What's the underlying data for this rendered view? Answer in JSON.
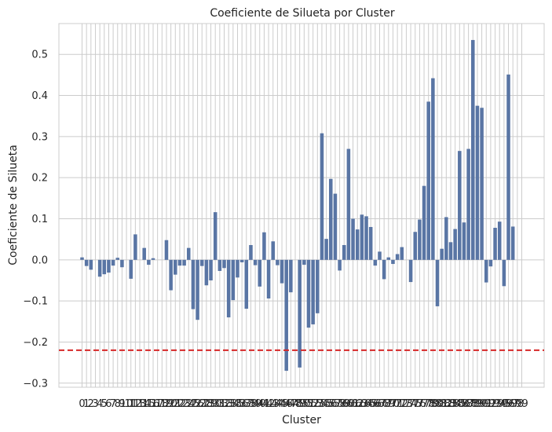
{
  "chart_data": {
    "type": "bar",
    "title": "Coeficiente de Silueta por Cluster",
    "xlabel": "Cluster",
    "ylabel": "Coeficiente de Silueta",
    "ylim": [
      -0.31,
      0.575
    ],
    "yticks": [
      "−0.3",
      "−0.2",
      "−0.1",
      "0.0",
      "0.1",
      "0.2",
      "0.3",
      "0.4",
      "0.5"
    ],
    "ytick_values": [
      -0.3,
      -0.2,
      -0.1,
      0.0,
      0.1,
      0.2,
      0.3,
      0.4,
      0.5
    ],
    "grid": true,
    "bar_color": "#5975a4",
    "reference_line": {
      "value": -0.22,
      "color": "#d62728",
      "style": "dashed"
    },
    "categories": [
      "0",
      "1",
      "2",
      "3",
      "4",
      "5",
      "6",
      "7",
      "8",
      "9",
      "10",
      "11",
      "12",
      "13",
      "14",
      "15",
      "16",
      "17",
      "18",
      "19",
      "20",
      "21",
      "22",
      "23",
      "24",
      "25",
      "26",
      "27",
      "28",
      "29",
      "30",
      "31",
      "32",
      "33",
      "34",
      "35",
      "36",
      "37",
      "38",
      "39",
      "40",
      "41",
      "42",
      "43",
      "44",
      "45",
      "46",
      "47",
      "48",
      "49",
      "50",
      "51",
      "52",
      "53",
      "54",
      "55",
      "56",
      "57",
      "58",
      "59",
      "60",
      "61",
      "62",
      "63",
      "64",
      "65",
      "66",
      "67",
      "68",
      "69",
      "70",
      "71",
      "72",
      "73",
      "74",
      "75",
      "76",
      "77",
      "78",
      "79",
      "80",
      "81",
      "82",
      "83",
      "84",
      "85",
      "86",
      "87",
      "88",
      "89",
      "90",
      "91",
      "92",
      "93",
      "94",
      "95",
      "96",
      "97",
      "98",
      "99"
    ],
    "values": [
      0.006,
      -0.015,
      -0.024,
      0.0,
      -0.041,
      -0.035,
      -0.031,
      -0.014,
      0.005,
      -0.018,
      0.0,
      -0.046,
      0.062,
      0.0,
      0.029,
      -0.012,
      0.004,
      0.0,
      0.0,
      0.048,
      -0.074,
      -0.036,
      -0.014,
      -0.014,
      0.029,
      -0.12,
      -0.146,
      -0.015,
      -0.062,
      -0.05,
      0.116,
      -0.027,
      -0.02,
      -0.14,
      -0.098,
      -0.043,
      -0.006,
      -0.119,
      0.036,
      -0.013,
      -0.065,
      0.067,
      -0.094,
      0.045,
      -0.013,
      -0.057,
      -0.27,
      -0.079,
      0.0,
      -0.262,
      -0.012,
      -0.165,
      -0.157,
      -0.13,
      0.308,
      0.051,
      0.197,
      0.161,
      -0.026,
      0.036,
      0.27,
      0.1,
      0.074,
      0.11,
      0.106,
      0.08,
      -0.014,
      0.02,
      -0.047,
      0.006,
      -0.01,
      0.014,
      0.031,
      0.0,
      -0.054,
      0.068,
      0.098,
      0.18,
      0.385,
      0.442,
      -0.113,
      0.027,
      0.104,
      0.043,
      0.075,
      0.265,
      0.091,
      0.27,
      0.535,
      0.375,
      0.37,
      -0.055,
      -0.016,
      0.078,
      0.093,
      -0.064,
      0.451,
      0.081,
      0.0,
      0.0
    ]
  }
}
